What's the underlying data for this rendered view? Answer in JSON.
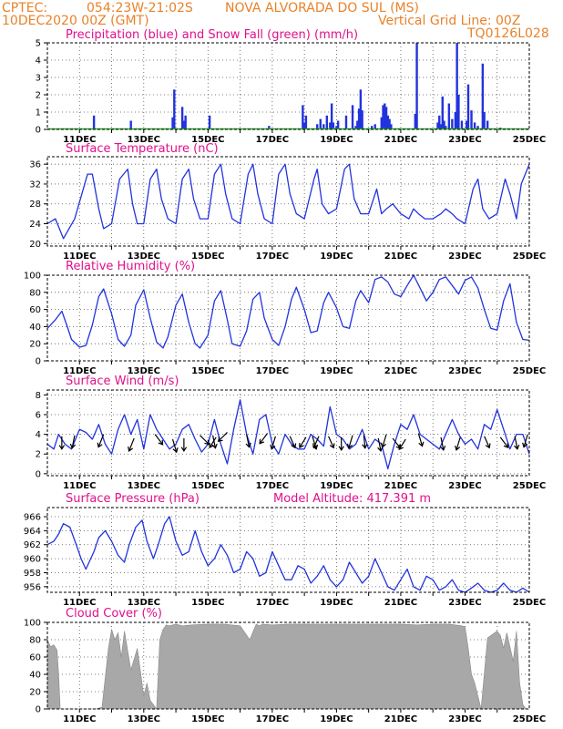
{
  "header": {
    "left_line1": "CPTEC:",
    "coords": "054:23W-21:02S",
    "station": "NOVA ALVORADA DO SUL (MS)",
    "date": "10DEC2020 00Z (GMT)",
    "grid_note": "Vertical Grid Line: 00Z",
    "code": "TQ0126L028"
  },
  "x_tick_labels": [
    "11DEC",
    "13DEC",
    "15DEC",
    "17DEC",
    "19DEC",
    "21DEC",
    "23DEC",
    "25DEC"
  ],
  "colors": {
    "line": "#2233dd",
    "precip": "#2233dd",
    "snow": "#22aa22",
    "cloud": "#a8a8a8",
    "wind_arrow": "#000000",
    "title": "#e0108c",
    "header": "#e8822a"
  },
  "chart_data": [
    {
      "id": "precip",
      "type": "bar",
      "title": "Precipitation (blue) and Snow Fall (green) (mm/h)",
      "x_unit": "days since 10DEC2020 00Z",
      "xlim": [
        0,
        15
      ],
      "ylim": [
        0,
        5
      ],
      "yticks": [
        "0",
        "1",
        "2",
        "3",
        "4",
        "5"
      ],
      "grid": true,
      "series": [
        {
          "name": "Precipitation",
          "x": [
            1.45,
            2.6,
            3.9,
            3.95,
            4.2,
            4.25,
            4.3,
            5.05,
            6.9,
            7.95,
            8.0,
            8.05,
            8.4,
            8.5,
            8.6,
            8.7,
            8.8,
            8.85,
            8.9,
            9.0,
            9.05,
            9.3,
            9.5,
            9.6,
            9.65,
            9.7,
            9.75,
            9.8,
            10.1,
            10.2,
            10.4,
            10.45,
            10.5,
            10.55,
            10.6,
            10.65,
            10.7,
            11.45,
            11.5,
            12.15,
            12.2,
            12.25,
            12.3,
            12.35,
            12.4,
            12.5,
            12.6,
            12.7,
            12.75,
            12.8,
            12.9,
            13.05,
            13.1,
            13.2,
            13.3,
            13.4,
            13.55,
            13.6,
            13.7,
            14.1
          ],
          "values": [
            0.8,
            0.5,
            0.7,
            2.3,
            1.3,
            0.5,
            0.8,
            0.8,
            0.2,
            1.4,
            0.4,
            0.8,
            0.3,
            0.6,
            0.3,
            0.8,
            0.4,
            1.5,
            0.4,
            0.2,
            0.5,
            0.8,
            1.4,
            0.2,
            0.5,
            1.2,
            2.3,
            1.1,
            0.2,
            0.3,
            0.7,
            1.4,
            1.5,
            1.3,
            0.8,
            0.6,
            0.3,
            0.9,
            5.0,
            0.4,
            0.8,
            0.3,
            1.9,
            0.5,
            0.2,
            1.5,
            0.6,
            1.0,
            5.0,
            2.0,
            0.5,
            0.5,
            2.6,
            1.1,
            0.4,
            0.2,
            3.8,
            1.0,
            0.5,
            0.1
          ]
        },
        {
          "name": "Snow Fall",
          "values": []
        }
      ]
    },
    {
      "id": "temperature",
      "type": "line",
      "title": "Surface Temperature (nC)",
      "x_unit": "days since 10DEC2020 00Z",
      "xlim": [
        0,
        15
      ],
      "ylim": [
        19.5,
        37.5
      ],
      "yticks": [
        "20",
        "24",
        "28",
        "32",
        "36"
      ],
      "grid": true,
      "x": [
        0,
        0.25,
        0.5,
        0.85,
        1.25,
        1.4,
        1.6,
        1.75,
        2.0,
        2.25,
        2.5,
        2.65,
        2.8,
        3.0,
        3.2,
        3.4,
        3.55,
        3.75,
        4.0,
        4.2,
        4.4,
        4.55,
        4.75,
        5.0,
        5.2,
        5.4,
        5.55,
        5.75,
        6.0,
        6.25,
        6.4,
        6.55,
        6.75,
        7.0,
        7.2,
        7.4,
        7.55,
        7.75,
        8.0,
        8.3,
        8.4,
        8.55,
        8.75,
        9.0,
        9.25,
        9.4,
        9.55,
        9.75,
        10.0,
        10.25,
        10.4,
        10.55,
        10.75,
        11.0,
        11.25,
        11.4,
        11.55,
        11.75,
        12.0,
        12.25,
        12.4,
        12.6,
        12.75,
        13.0,
        13.25,
        13.4,
        13.55,
        13.75,
        14.0,
        14.25,
        14.4,
        14.6,
        14.75,
        15.0
      ],
      "y": [
        24,
        25,
        21,
        25,
        34,
        34,
        27,
        23,
        24,
        33,
        35,
        28,
        24,
        24,
        33,
        35,
        29,
        25,
        24,
        33,
        35,
        29,
        25,
        25,
        34,
        36,
        30,
        25,
        24,
        34,
        36,
        30,
        25,
        24,
        34,
        36,
        30,
        26,
        25,
        33,
        35,
        28,
        26,
        27,
        35,
        36,
        29,
        26,
        26,
        31,
        26,
        27,
        28,
        26,
        25,
        27,
        26,
        25,
        25,
        26,
        27,
        26,
        25,
        24,
        31,
        33,
        27,
        25,
        26,
        33,
        30,
        25,
        32,
        36
      ]
    },
    {
      "id": "humidity",
      "type": "line",
      "title": "Relative Humidity (%)",
      "x_unit": "days since 10DEC2020 00Z",
      "xlim": [
        0,
        15
      ],
      "ylim": [
        0,
        100
      ],
      "yticks": [
        "0",
        "20",
        "40",
        "60",
        "80",
        "100"
      ],
      "grid": true,
      "x": [
        0,
        0.25,
        0.45,
        0.6,
        0.75,
        1.0,
        1.2,
        1.4,
        1.6,
        1.75,
        2.0,
        2.2,
        2.4,
        2.6,
        2.75,
        3.0,
        3.2,
        3.4,
        3.6,
        3.75,
        4.0,
        4.2,
        4.4,
        4.6,
        4.75,
        5.0,
        5.2,
        5.4,
        5.6,
        5.75,
        6.0,
        6.2,
        6.4,
        6.6,
        6.75,
        7.0,
        7.2,
        7.4,
        7.6,
        7.75,
        8.0,
        8.2,
        8.4,
        8.6,
        8.75,
        9.0,
        9.2,
        9.4,
        9.6,
        9.75,
        10.0,
        10.2,
        10.4,
        10.6,
        10.8,
        11.0,
        11.2,
        11.4,
        11.6,
        11.8,
        12.0,
        12.2,
        12.4,
        12.6,
        12.8,
        13.0,
        13.2,
        13.4,
        13.6,
        13.8,
        14.0,
        14.2,
        14.4,
        14.6,
        14.8,
        15.0
      ],
      "y": [
        38,
        48,
        58,
        42,
        25,
        16,
        18,
        42,
        75,
        84,
        55,
        25,
        17,
        30,
        65,
        83,
        50,
        22,
        15,
        28,
        65,
        78,
        45,
        20,
        15,
        30,
        70,
        82,
        48,
        20,
        17,
        35,
        72,
        80,
        50,
        25,
        18,
        40,
        72,
        86,
        60,
        33,
        35,
        68,
        80,
        62,
        40,
        38,
        70,
        82,
        68,
        95,
        98,
        92,
        78,
        75,
        88,
        100,
        85,
        70,
        80,
        95,
        98,
        88,
        78,
        94,
        98,
        85,
        60,
        38,
        36,
        70,
        90,
        45,
        25,
        24
      ]
    },
    {
      "id": "wind",
      "type": "line",
      "title": "Surface Wind (m/s)",
      "x_unit": "days since 10DEC2020 00Z",
      "xlim": [
        0,
        15
      ],
      "ylim": [
        -0.2,
        8.5
      ],
      "yticks": [
        "0",
        "2",
        "4",
        "6",
        "8"
      ],
      "grid": true,
      "x": [
        0,
        0.2,
        0.35,
        0.55,
        0.75,
        1.0,
        1.2,
        1.4,
        1.6,
        1.8,
        2.0,
        2.2,
        2.4,
        2.6,
        2.8,
        3.0,
        3.2,
        3.4,
        3.6,
        3.8,
        4.0,
        4.2,
        4.4,
        4.6,
        4.8,
        5.0,
        5.2,
        5.4,
        5.6,
        5.8,
        6.0,
        6.2,
        6.4,
        6.6,
        6.8,
        7.0,
        7.2,
        7.4,
        7.6,
        7.8,
        8.0,
        8.2,
        8.4,
        8.6,
        8.8,
        9.0,
        9.2,
        9.4,
        9.6,
        9.8,
        10.0,
        10.2,
        10.4,
        10.6,
        10.8,
        11.0,
        11.2,
        11.4,
        11.6,
        11.8,
        12.0,
        12.2,
        12.4,
        12.6,
        12.8,
        13.0,
        13.2,
        13.4,
        13.6,
        13.8,
        14.0,
        14.2,
        14.4,
        14.6,
        14.8,
        15.0
      ],
      "y": [
        3,
        2.5,
        4,
        3,
        2.5,
        4.5,
        4.2,
        3.5,
        5,
        3,
        2,
        4.5,
        6,
        4,
        5.5,
        2.5,
        6,
        4.5,
        3.5,
        2.5,
        3,
        4.5,
        5,
        3.5,
        2.2,
        3,
        5.5,
        3,
        1,
        4.5,
        7.5,
        4,
        2,
        5.5,
        6,
        3,
        2,
        4,
        3,
        2.5,
        2.5,
        4,
        3.5,
        2.8,
        6.8,
        4,
        3.5,
        2.5,
        3,
        4.5,
        2.5,
        3.5,
        3,
        0.5,
        3,
        5,
        4.5,
        6,
        4,
        3.5,
        3,
        2.5,
        4,
        5.5,
        4,
        3,
        3.5,
        2.5,
        5,
        4.5,
        6.5,
        4.5,
        2.5,
        4,
        4,
        2
      ],
      "barbs": [
        {
          "x": 0.45,
          "y": 3.8,
          "dx": 0,
          "dy": -1
        },
        {
          "x": 0.85,
          "y": 3.9,
          "dx": -0.2,
          "dy": -1
        },
        {
          "x": 1.75,
          "y": 4.0,
          "dx": -0.4,
          "dy": -1
        },
        {
          "x": 2.7,
          "y": 3.6,
          "dx": -0.4,
          "dy": -1
        },
        {
          "x": 3.35,
          "y": 4.0,
          "dx": 0.6,
          "dy": -0.8
        },
        {
          "x": 3.9,
          "y": 3.5,
          "dx": 0.3,
          "dy": -1
        },
        {
          "x": 4.25,
          "y": 3.6,
          "dx": 0,
          "dy": -1
        },
        {
          "x": 4.75,
          "y": 3.9,
          "dx": 0.7,
          "dy": -0.7
        },
        {
          "x": 5.15,
          "y": 3.9,
          "dx": 0.2,
          "dy": -1
        },
        {
          "x": 5.25,
          "y": 3.7,
          "dx": -0.5,
          "dy": -0.8
        },
        {
          "x": 5.6,
          "y": 4.2,
          "dx": -0.7,
          "dy": -0.7
        },
        {
          "x": 6.2,
          "y": 4.0,
          "dx": 0.2,
          "dy": -1
        },
        {
          "x": 6.85,
          "y": 4.1,
          "dx": -0.6,
          "dy": -0.8
        },
        {
          "x": 7.1,
          "y": 3.8,
          "dx": -0.3,
          "dy": -1
        },
        {
          "x": 7.55,
          "y": 3.8,
          "dx": 0.4,
          "dy": -0.9
        },
        {
          "x": 8.05,
          "y": 3.7,
          "dx": -0.5,
          "dy": -0.8
        },
        {
          "x": 8.25,
          "y": 3.8,
          "dx": 0.3,
          "dy": -1
        },
        {
          "x": 8.45,
          "y": 3.8,
          "dx": -0.4,
          "dy": -0.9
        },
        {
          "x": 8.75,
          "y": 3.8,
          "dx": 0.4,
          "dy": -0.9
        },
        {
          "x": 9.15,
          "y": 3.7,
          "dx": 0,
          "dy": -1
        },
        {
          "x": 9.5,
          "y": 3.9,
          "dx": -0.3,
          "dy": -1
        },
        {
          "x": 9.85,
          "y": 3.9,
          "dx": 0.1,
          "dy": -1
        },
        {
          "x": 10.3,
          "y": 3.6,
          "dx": 0.2,
          "dy": -1
        },
        {
          "x": 10.55,
          "y": 4.0,
          "dx": -0.3,
          "dy": -1
        },
        {
          "x": 10.75,
          "y": 3.6,
          "dx": 0.6,
          "dy": -0.8
        },
        {
          "x": 11.15,
          "y": 3.5,
          "dx": -0.5,
          "dy": -0.8
        },
        {
          "x": 11.55,
          "y": 4.1,
          "dx": 0.3,
          "dy": -1
        },
        {
          "x": 12.25,
          "y": 3.7,
          "dx": 0.2,
          "dy": -1
        },
        {
          "x": 12.85,
          "y": 3.7,
          "dx": -0.3,
          "dy": -1
        },
        {
          "x": 13.6,
          "y": 3.8,
          "dx": 0.4,
          "dy": -0.9
        },
        {
          "x": 14.1,
          "y": 3.7,
          "dx": 0.6,
          "dy": -0.8
        },
        {
          "x": 14.55,
          "y": 3.8,
          "dx": 0.2,
          "dy": -1
        },
        {
          "x": 14.95,
          "y": 4.0,
          "dx": -0.3,
          "dy": -1
        }
      ]
    },
    {
      "id": "pressure",
      "type": "line",
      "title": "Surface Pressure (hPa)",
      "subtitle": "Model Altitude: 417.391  m",
      "x_unit": "days since 10DEC2020 00Z",
      "xlim": [
        0,
        15
      ],
      "ylim": [
        955.2,
        967.3
      ],
      "yticks": [
        "956",
        "958",
        "960",
        "962",
        "964",
        "966"
      ],
      "grid": true,
      "x": [
        0,
        0.2,
        0.35,
        0.5,
        0.7,
        0.9,
        1.05,
        1.2,
        1.45,
        1.6,
        1.8,
        2.0,
        2.2,
        2.4,
        2.55,
        2.75,
        2.95,
        3.1,
        3.3,
        3.45,
        3.65,
        3.8,
        4.0,
        4.2,
        4.4,
        4.6,
        4.8,
        5.0,
        5.2,
        5.4,
        5.6,
        5.8,
        6.0,
        6.2,
        6.4,
        6.6,
        6.8,
        7.0,
        7.2,
        7.4,
        7.6,
        7.8,
        8.0,
        8.2,
        8.4,
        8.6,
        8.8,
        9.0,
        9.2,
        9.4,
        9.6,
        9.8,
        10.0,
        10.2,
        10.4,
        10.6,
        10.8,
        11.0,
        11.2,
        11.4,
        11.6,
        11.8,
        12.0,
        12.2,
        12.4,
        12.6,
        12.8,
        13.0,
        13.2,
        13.4,
        13.6,
        13.8,
        14.0,
        14.2,
        14.4,
        14.6,
        14.8,
        15.0
      ],
      "y": [
        962,
        962.5,
        963.5,
        965,
        964.5,
        962,
        960,
        958.5,
        961,
        963,
        964,
        962.5,
        960.5,
        959.5,
        962,
        964.5,
        965.5,
        962.5,
        960,
        962,
        965,
        966,
        962.5,
        960.5,
        961,
        964,
        961,
        959,
        960,
        962,
        960.5,
        958,
        958.5,
        961,
        960,
        957.5,
        958,
        961,
        959,
        957,
        957,
        959,
        958.5,
        956.5,
        957.5,
        959,
        957,
        956,
        957,
        959.5,
        958,
        956.5,
        957.5,
        960,
        958,
        956,
        955.5,
        957,
        958.5,
        956,
        955.5,
        957.5,
        957,
        955.5,
        956,
        957,
        955.5,
        955.2,
        955.8,
        956.5,
        955.5,
        955.2,
        955.5,
        956.5,
        955.5,
        955.2,
        955.8,
        955.2
      ]
    },
    {
      "id": "cloud",
      "type": "area",
      "title": "Cloud Cover (%)",
      "x_unit": "days since 10DEC2020 00Z",
      "xlim": [
        0,
        15
      ],
      "ylim": [
        0,
        100
      ],
      "yticks": [
        "0",
        "20",
        "40",
        "60",
        "80",
        "100"
      ],
      "grid": true,
      "x": [
        0,
        0.1,
        0.2,
        0.3,
        0.35,
        0.4,
        0.5,
        0.7,
        0.9,
        1.1,
        1.3,
        1.5,
        1.7,
        1.9,
        2.0,
        2.1,
        2.2,
        2.3,
        2.4,
        2.6,
        2.8,
        3.0,
        3.1,
        3.2,
        3.4,
        3.5,
        3.6,
        3.7,
        3.8,
        4.0,
        4.2,
        4.5,
        5.0,
        5.5,
        6.0,
        6.3,
        6.5,
        6.6,
        6.7,
        7.0,
        7.5,
        8.0,
        9.0,
        10.0,
        11.0,
        11.5,
        12.0,
        12.5,
        12.9,
        13.0,
        13.1,
        13.2,
        13.3,
        13.5,
        13.7,
        14.0,
        14.1,
        14.2,
        14.3,
        14.5,
        14.6,
        14.7,
        14.8,
        14.9,
        15.0
      ],
      "y": [
        80,
        72,
        74,
        68,
        40,
        0,
        0,
        0,
        0,
        0,
        0,
        0,
        2,
        70,
        92,
        80,
        88,
        60,
        90,
        45,
        70,
        15,
        30,
        10,
        0,
        80,
        92,
        97,
        96,
        98,
        96,
        97,
        98,
        98,
        96,
        80,
        98,
        96,
        98,
        97,
        98,
        98,
        98,
        98,
        98,
        97,
        98,
        98,
        96,
        95,
        70,
        40,
        30,
        0,
        82,
        90,
        85,
        70,
        88,
        55,
        90,
        30,
        5,
        0,
        0
      ]
    }
  ]
}
